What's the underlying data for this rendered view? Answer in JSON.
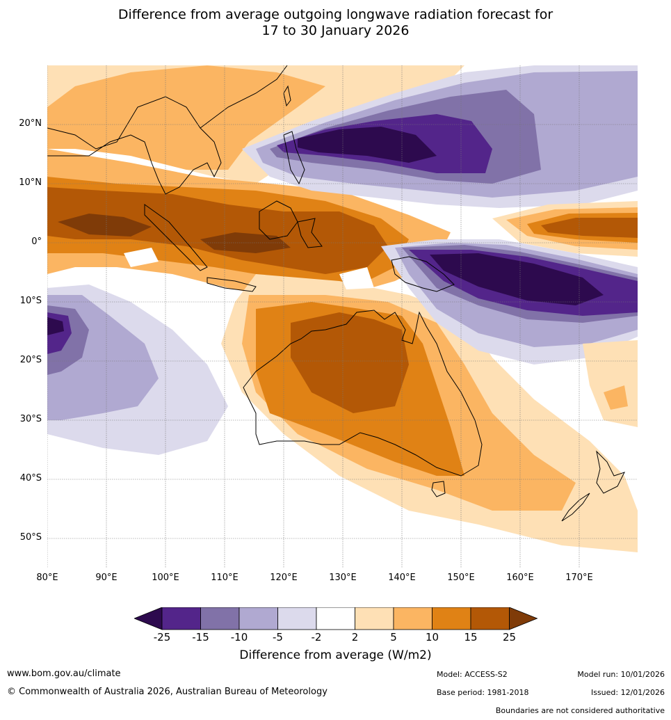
{
  "title": {
    "line1": "Difference from average outgoing longwave radiation forecast for",
    "line2": "17 to 30 January 2026"
  },
  "map": {
    "lat_labels": [
      "20°N",
      "10°N",
      "0°",
      "10°S",
      "20°S",
      "30°S",
      "40°S",
      "50°S"
    ],
    "lon_labels": [
      "80°E",
      "90°E",
      "100°E",
      "110°E",
      "120°E",
      "130°E",
      "140°E",
      "150°E",
      "160°E",
      "170°E"
    ],
    "colors": {
      "lt_m25": "#2d0a4e",
      "m25_m15": "#53258a",
      "m15_m10": "#8172a8",
      "m10_m5": "#b0a9d1",
      "m5_m2": "#dcdaec",
      "m2_2": "#ffffff",
      "p2_5": "#fee0b5",
      "p5_10": "#fbb562",
      "p10_15": "#e08215",
      "p15_25": "#b35806",
      "gt_25": "#7f3b08"
    }
  },
  "colorbar": {
    "labels": [
      "-25",
      "-15",
      "-10",
      "-5",
      "-2",
      "2",
      "5",
      "10",
      "15",
      "25"
    ],
    "title": "Difference from average (W/m2)"
  },
  "footer": {
    "website": "www.bom.gov.au/climate",
    "copyright": "© Commonwealth of Australia 2026, Australian Bureau of Meteorology",
    "model": "Model: ACCESS-S2",
    "base_period": "Base period: 1981-2018",
    "model_run": "Model run: 10/01/2026",
    "issued": "Issued: 12/01/2026",
    "disclaimer": "Boundaries are not considered authoritative"
  }
}
